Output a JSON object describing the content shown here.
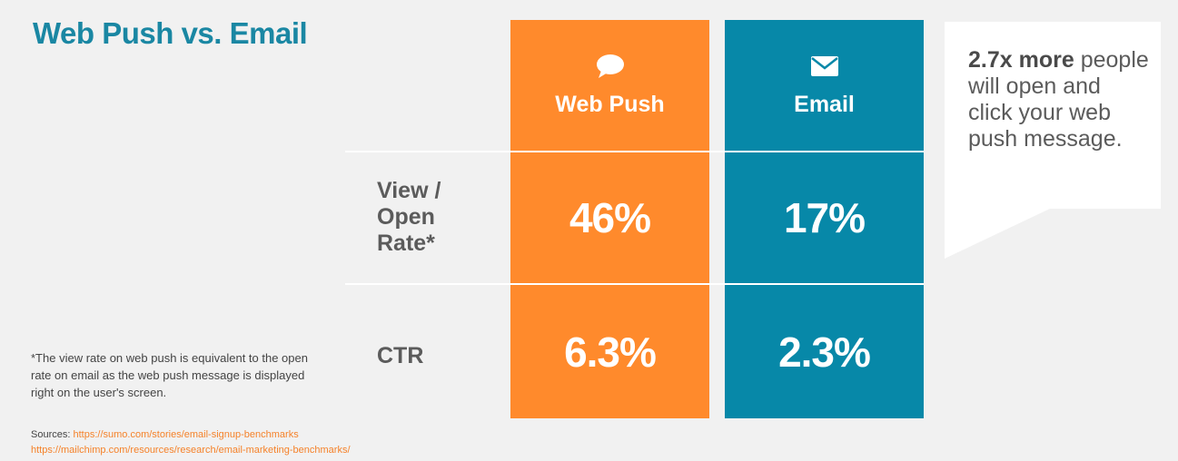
{
  "title": "Web Push vs. Email",
  "colors": {
    "push": "#ff8a2c",
    "email": "#0788a8",
    "title": "#1a87a3"
  },
  "columns": [
    {
      "label": "Web Push",
      "icon": "speech-bubble-icon"
    },
    {
      "label": "Email",
      "icon": "envelope-icon"
    }
  ],
  "rows": [
    {
      "label": "View / Open Rate*"
    },
    {
      "label": "CTR"
    }
  ],
  "chart_data": {
    "type": "table",
    "title": "Web Push vs. Email",
    "columns": [
      "Web Push",
      "Email"
    ],
    "rows": [
      "View / Open Rate*",
      "CTR"
    ],
    "cells": [
      [
        "46%",
        "17%"
      ],
      [
        "6.3%",
        "2.3%"
      ]
    ],
    "series": [
      {
        "name": "Web Push",
        "values": [
          46,
          6.3
        ]
      },
      {
        "name": "Email",
        "values": [
          17,
          2.3
        ]
      }
    ],
    "unit": "%"
  },
  "callout": {
    "bold": "2.7x more",
    "text": "people will open and click your web push message."
  },
  "footnote": "*The view rate on web push is equivalent to the open rate on email as the web push message is displayed right on the user's screen.",
  "sources": {
    "label": "Sources:",
    "links": [
      "https://sumo.com/stories/email-signup-benchmarks",
      "https://mailchimp.com/resources/research/email-marketing-benchmarks/"
    ]
  }
}
